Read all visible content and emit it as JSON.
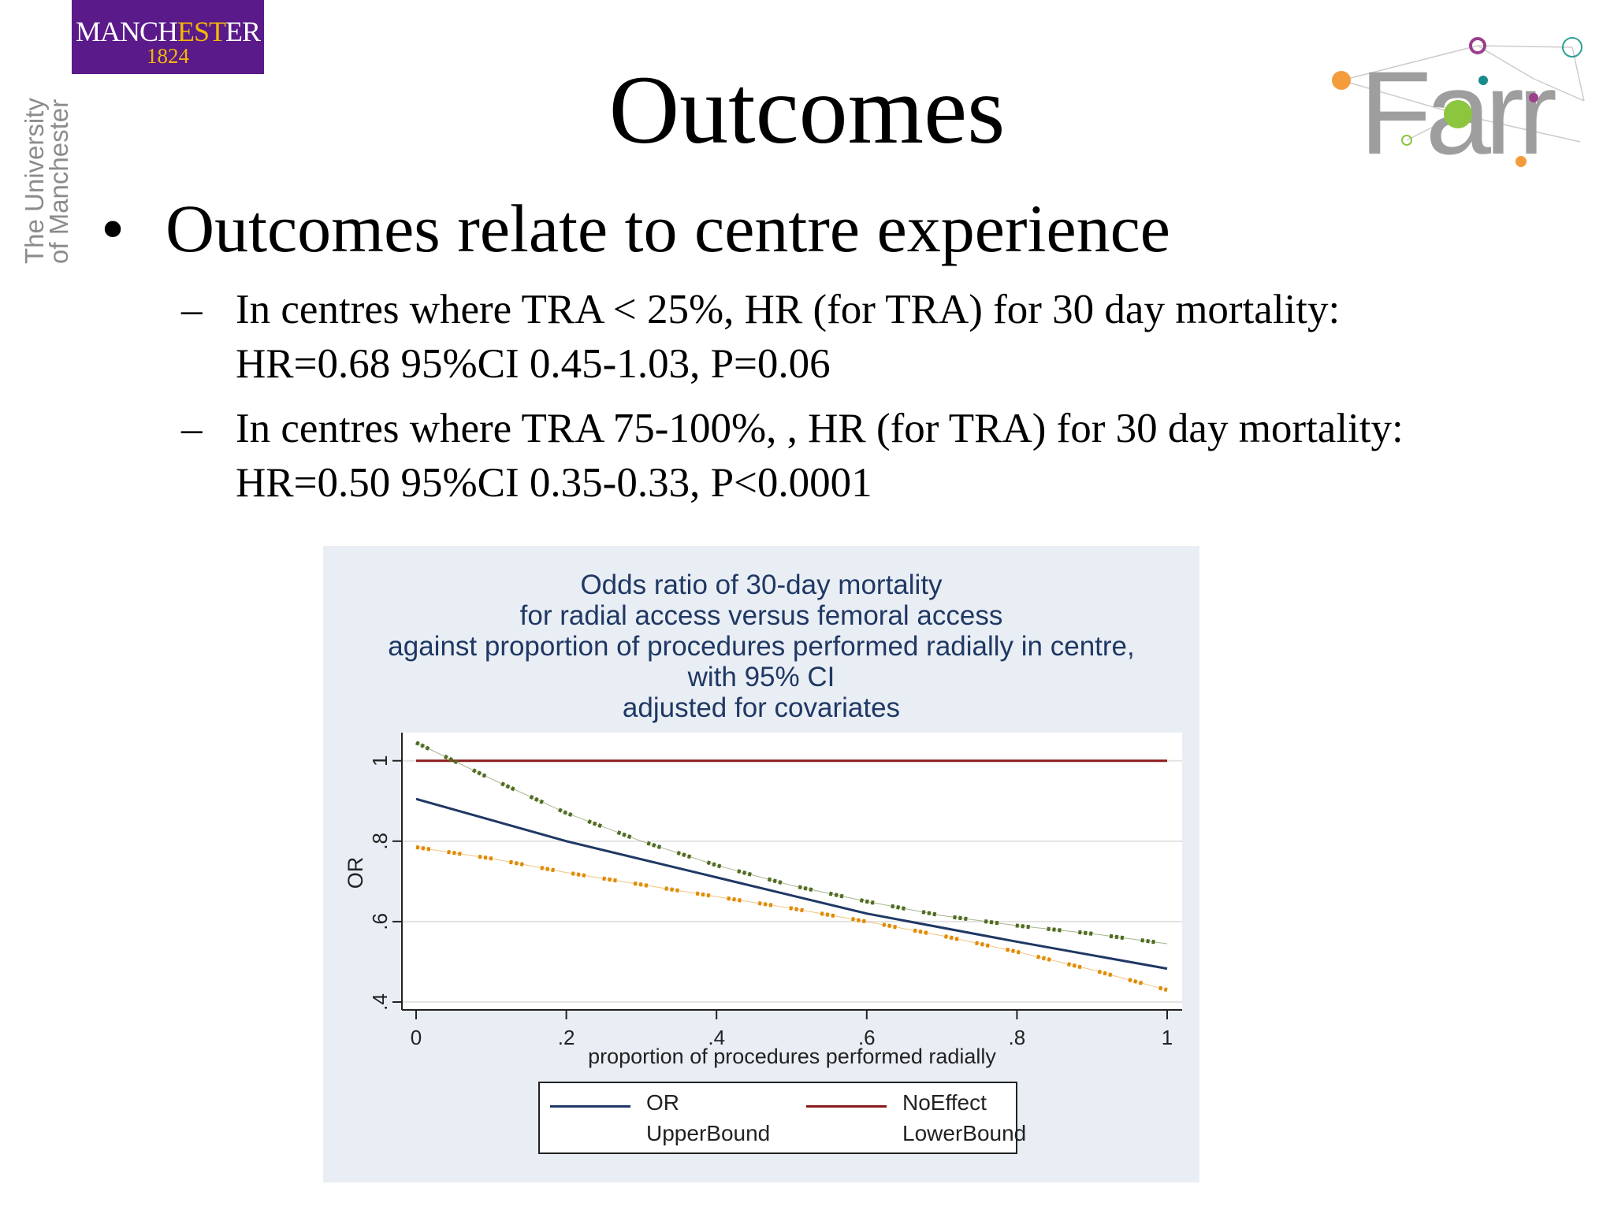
{
  "branding": {
    "manchester_name_a": "MANCH",
    "manchester_name_b": "EST",
    "manchester_name_c": "ER",
    "manchester_year": "1824",
    "university_line1": "The University",
    "university_line2": "of Manchester",
    "farr_logo_text": "Farr"
  },
  "slide": {
    "title": "Outcomes",
    "bullet": "Outcomes relate to centre experience",
    "sub1_line1": "In centres where TRA < 25%, HR (for TRA) for 30 day mortality:",
    "sub1_line2": "HR=0.68 95%CI 0.45-1.03, P=0.06",
    "sub2_line1": "In centres where TRA 75-100%, , HR (for TRA) for 30 day mortality:",
    "sub2_line2": "HR=0.50 95%CI 0.35-0.33, P<0.0001"
  },
  "chart_data": {
    "type": "line",
    "title_lines": [
      "Odds ratio of 30-day mortality",
      "for radial access versus femoral access",
      "against proportion of procedures performed radially in centre,",
      "with 95% CI",
      "adjusted for covariates"
    ],
    "xlabel": "proportion of procedures performed radially",
    "ylabel": "OR",
    "xlim": [
      0,
      1
    ],
    "ylim": [
      0.4,
      1.07
    ],
    "xticks": [
      0,
      0.2,
      0.4,
      0.6,
      0.8,
      1
    ],
    "xtick_labels": [
      "0",
      ".2",
      ".4",
      ".6",
      ".8",
      "1"
    ],
    "yticks": [
      0.4,
      0.6,
      0.8,
      1
    ],
    "ytick_labels": [
      ".4",
      ".6",
      ".8",
      "1"
    ],
    "grid": true,
    "legend_position": "bottom",
    "series": [
      {
        "name": "OR",
        "color": "#1f3864",
        "style": "solid",
        "x": [
          0,
          0.2,
          0.4,
          0.6,
          0.8,
          1
        ],
        "y": [
          0.905,
          0.8,
          0.71,
          0.62,
          0.55,
          0.483
        ]
      },
      {
        "name": "NoEffect",
        "color": "#8b1a1a",
        "style": "solid",
        "x": [
          0,
          1
        ],
        "y": [
          1,
          1
        ]
      },
      {
        "name": "UpperBound",
        "color": "#4f6b1f",
        "style": "dotted",
        "x": [
          0,
          0.1,
          0.2,
          0.3,
          0.4,
          0.5,
          0.6,
          0.7,
          0.8,
          0.9,
          1
        ],
        "y": [
          1.045,
          0.955,
          0.87,
          0.8,
          0.74,
          0.69,
          0.65,
          0.615,
          0.59,
          0.57,
          0.545
        ]
      },
      {
        "name": "LowerBound",
        "color": "#e08a00",
        "style": "dotted",
        "x": [
          0,
          0.1,
          0.2,
          0.3,
          0.4,
          0.5,
          0.6,
          0.7,
          0.8,
          0.9,
          1
        ],
        "y": [
          0.785,
          0.757,
          0.722,
          0.692,
          0.662,
          0.633,
          0.6,
          0.565,
          0.525,
          0.48,
          0.43
        ]
      }
    ]
  }
}
